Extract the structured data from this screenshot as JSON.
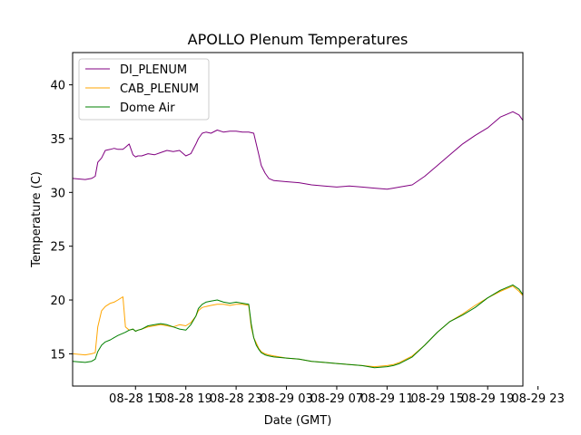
{
  "chart_data": {
    "type": "line",
    "title": "APOLLO Plenum Temperatures",
    "xlabel": "Date (GMT)",
    "ylabel": "Temperature (C)",
    "xlim": [
      0,
      35.8
    ],
    "ylim": [
      12.0,
      43.0
    ],
    "x_unit": "hours since 08-28 10:00 GMT",
    "xticks": [
      {
        "x": 5,
        "label": "08-28 15"
      },
      {
        "x": 9,
        "label": "08-28 19"
      },
      {
        "x": 13,
        "label": "08-28 23"
      },
      {
        "x": 17,
        "label": "08-29 03"
      },
      {
        "x": 21,
        "label": "08-29 07"
      },
      {
        "x": 25,
        "label": "08-29 11"
      },
      {
        "x": 29,
        "label": "08-29 15"
      },
      {
        "x": 33,
        "label": "08-29 19"
      },
      {
        "x": 37,
        "label": "08-29 23"
      }
    ],
    "yticks": [
      {
        "y": 15,
        "label": "15"
      },
      {
        "y": 20,
        "label": "20"
      },
      {
        "y": 25,
        "label": "25"
      },
      {
        "y": 30,
        "label": "30"
      },
      {
        "y": 35,
        "label": "35"
      },
      {
        "y": 40,
        "label": "40"
      }
    ],
    "grid": false,
    "legend_position": "top-left",
    "series": [
      {
        "name": "DI_PLENUM",
        "color": "#800080",
        "x": [
          0,
          1,
          1.5,
          1.8,
          2.0,
          2.3,
          2.6,
          3.0,
          3.3,
          3.6,
          4.0,
          4.2,
          4.5,
          4.8,
          5.0,
          5.2,
          5.5,
          6,
          6.5,
          7,
          7.5,
          8,
          8.5,
          9.0,
          9.4,
          9.8,
          10.0,
          10.3,
          10.6,
          11.0,
          11.5,
          12.0,
          12.5,
          13.0,
          13.5,
          14.0,
          14.4,
          14.6,
          14.8,
          15.0,
          15.3,
          15.6,
          16.0,
          17,
          18,
          19,
          20,
          21,
          22,
          23,
          24,
          25,
          25.5,
          26,
          27,
          28,
          29,
          30,
          31,
          32,
          33,
          34,
          35,
          35.5,
          35.8
        ],
        "y": [
          31.3,
          31.2,
          31.3,
          31.5,
          32.8,
          33.2,
          33.9,
          34.0,
          34.1,
          34.0,
          34.0,
          34.2,
          34.5,
          33.5,
          33.3,
          33.4,
          33.4,
          33.6,
          33.5,
          33.7,
          33.9,
          33.8,
          33.9,
          33.4,
          33.6,
          34.5,
          35.0,
          35.5,
          35.6,
          35.5,
          35.8,
          35.6,
          35.7,
          35.7,
          35.6,
          35.6,
          35.5,
          34.5,
          33.5,
          32.5,
          31.8,
          31.3,
          31.1,
          31.0,
          30.9,
          30.7,
          30.6,
          30.5,
          30.6,
          30.5,
          30.4,
          30.3,
          30.4,
          30.5,
          30.7,
          31.5,
          32.5,
          33.5,
          34.5,
          35.3,
          36.0,
          37.0,
          37.5,
          37.2,
          36.7
        ]
      },
      {
        "name": "CAB_PLENUM",
        "color": "#FFA500",
        "x": [
          0,
          1,
          1.5,
          1.8,
          2.0,
          2.3,
          2.6,
          3.0,
          3.3,
          3.6,
          4.0,
          4.2,
          4.5,
          4.8,
          5.0,
          5.2,
          5.5,
          6,
          6.5,
          7,
          7.5,
          8,
          8.5,
          9.0,
          9.4,
          9.8,
          10.0,
          10.3,
          10.6,
          11.0,
          11.5,
          12.0,
          12.5,
          13.0,
          13.5,
          14.0,
          14.2,
          14.4,
          14.6,
          14.8,
          15.0,
          15.3,
          15.6,
          16.0,
          17,
          18,
          19,
          20,
          21,
          22,
          23,
          24,
          25,
          25.5,
          26,
          27,
          28,
          29,
          30,
          31,
          32,
          33,
          34,
          35,
          35.5,
          35.8
        ],
        "y": [
          15.0,
          14.9,
          15.0,
          15.1,
          17.5,
          19.0,
          19.4,
          19.7,
          19.8,
          20.0,
          20.3,
          17.5,
          17.2,
          17.3,
          17.1,
          17.2,
          17.3,
          17.5,
          17.6,
          17.7,
          17.6,
          17.5,
          17.7,
          17.6,
          17.9,
          18.5,
          19.0,
          19.3,
          19.4,
          19.5,
          19.6,
          19.6,
          19.5,
          19.6,
          19.6,
          19.5,
          17.5,
          16.5,
          16.0,
          15.5,
          15.2,
          15.0,
          14.9,
          14.8,
          14.6,
          14.5,
          14.3,
          14.2,
          14.1,
          14.0,
          13.9,
          13.8,
          13.9,
          14.0,
          14.2,
          14.8,
          15.8,
          17.0,
          18.0,
          18.7,
          19.5,
          20.2,
          20.8,
          21.3,
          20.8,
          20.4
        ]
      },
      {
        "name": "Dome Air",
        "color": "#008000",
        "x": [
          0,
          1,
          1.5,
          1.8,
          2.0,
          2.3,
          2.6,
          3.0,
          3.3,
          3.6,
          4.0,
          4.2,
          4.5,
          4.8,
          5.0,
          5.2,
          5.5,
          6,
          6.5,
          7,
          7.5,
          8,
          8.5,
          9.0,
          9.4,
          9.8,
          10.0,
          10.3,
          10.6,
          11.0,
          11.5,
          12.0,
          12.5,
          13.0,
          13.5,
          14.0,
          14.2,
          14.4,
          14.6,
          14.8,
          15.0,
          15.3,
          15.6,
          16.0,
          17,
          18,
          19,
          20,
          21,
          22,
          23,
          24,
          25,
          25.5,
          26,
          27,
          28,
          29,
          30,
          31,
          32,
          33,
          34,
          35,
          35.5,
          35.8
        ],
        "y": [
          14.3,
          14.2,
          14.3,
          14.5,
          15.2,
          15.8,
          16.1,
          16.3,
          16.5,
          16.7,
          16.9,
          17.0,
          17.2,
          17.3,
          17.1,
          17.2,
          17.3,
          17.6,
          17.7,
          17.8,
          17.7,
          17.5,
          17.3,
          17.2,
          17.7,
          18.5,
          19.2,
          19.6,
          19.8,
          19.9,
          20.0,
          19.8,
          19.7,
          19.8,
          19.7,
          19.6,
          17.8,
          16.5,
          15.8,
          15.4,
          15.1,
          14.9,
          14.8,
          14.7,
          14.6,
          14.5,
          14.3,
          14.2,
          14.1,
          14.0,
          13.9,
          13.7,
          13.8,
          13.9,
          14.1,
          14.7,
          15.8,
          17.0,
          18.0,
          18.6,
          19.3,
          20.2,
          20.9,
          21.4,
          21.0,
          20.5
        ]
      }
    ]
  }
}
